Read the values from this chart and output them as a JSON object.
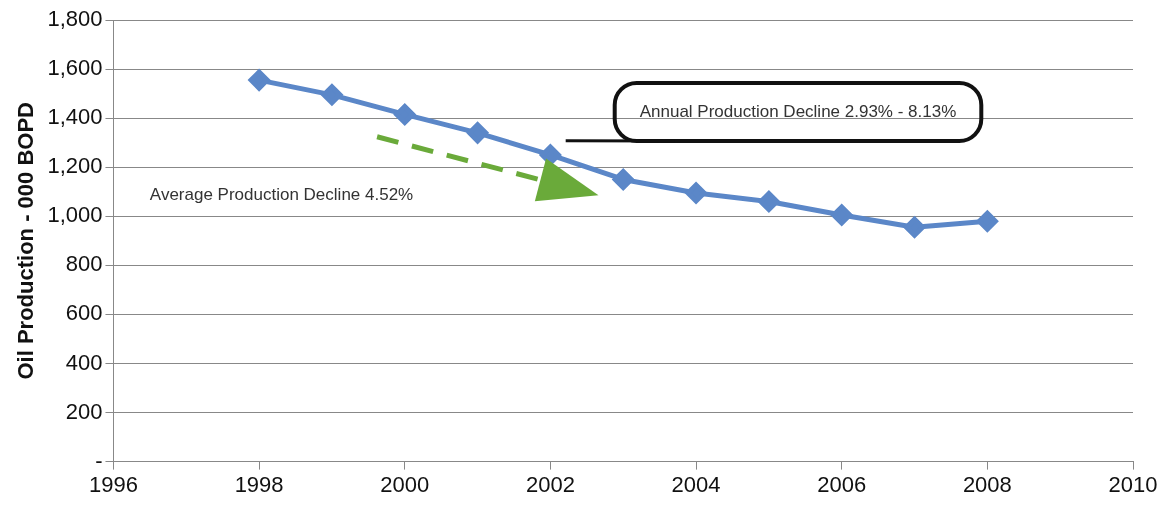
{
  "chart_data": {
    "type": "line",
    "ylabel": "Oil Production - 000 BOPD",
    "x": [
      1998,
      1999,
      2000,
      2001,
      2002,
      2003,
      2004,
      2005,
      2006,
      2007,
      2008
    ],
    "series": [
      {
        "color": "#5b87c8",
        "values": [
          1555,
          1495,
          1415,
          1340,
          1250,
          1150,
          1095,
          1060,
          1005,
          955,
          980
        ]
      }
    ],
    "xlim": [
      1996,
      2010
    ],
    "xticks": [
      1996,
      1998,
      2000,
      2002,
      2004,
      2006,
      2008,
      2010
    ],
    "ylim": [
      0,
      1800
    ],
    "yticks": [
      {
        "value": 0,
        "label": "-"
      },
      {
        "value": 200,
        "label": "200"
      },
      {
        "value": 400,
        "label": "400"
      },
      {
        "value": 600,
        "label": "600"
      },
      {
        "value": 800,
        "label": "800"
      },
      {
        "value": 1000,
        "label": "1,000"
      },
      {
        "value": 1200,
        "label": "1,200"
      },
      {
        "value": 1400,
        "label": "1,400"
      },
      {
        "value": 1600,
        "label": "1,600"
      },
      {
        "value": 1800,
        "label": "1,800"
      }
    ],
    "grid": "y",
    "marker": "diamond",
    "line_style": "solid",
    "legend": false,
    "annotations": [
      "Annual Production Decline 2.93% - 8.13%",
      "Average Production Decline 4.52%"
    ]
  }
}
